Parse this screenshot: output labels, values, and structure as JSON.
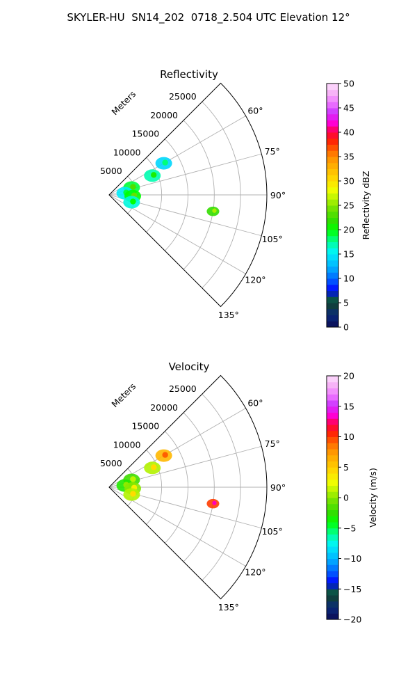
{
  "title": "SKYLER-HU  SN14_202  0718_2.504 UTC Elevation 12°",
  "chart_data": [
    {
      "type": "polar-sector-radar",
      "title": "Reflectivity",
      "range_label": "Meters",
      "range_ticks": [
        5000,
        10000,
        15000,
        20000,
        25000
      ],
      "range_tick_labels": [
        "5000",
        "10000",
        "15000",
        "20000",
        "25000"
      ],
      "r_max": 30000,
      "azimuth_range_deg": [
        45,
        135
      ],
      "azimuth_ticks": [
        60,
        75,
        90,
        105,
        120,
        135
      ],
      "azimuth_tick_labels": [
        "60°",
        "75°",
        "90°",
        "105°",
        "120°",
        "135°"
      ],
      "grid": true,
      "colorbar": {
        "label": "Reflectivity dBZ",
        "min": 0,
        "max": 50,
        "ticks": [
          0,
          5,
          10,
          15,
          20,
          25,
          30,
          35,
          40,
          45,
          50
        ],
        "tick_labels": [
          "0",
          "5",
          "10",
          "15",
          "20",
          "25",
          "30",
          "35",
          "40",
          "45",
          "50"
        ]
      },
      "echoes": [
        {
          "azimuth": 60,
          "range": 12000,
          "value": 14
        },
        {
          "azimuth": 66,
          "range": 9000,
          "value": 17
        },
        {
          "azimuth": 72,
          "range": 4500,
          "value": 19
        },
        {
          "azimuth": 84,
          "range": 3000,
          "value": 15
        },
        {
          "azimuth": 93,
          "range": 4500,
          "value": 20
        },
        {
          "azimuth": 99,
          "range": 20000,
          "value": 22
        },
        {
          "azimuth": 108,
          "range": 4500,
          "value": 16
        }
      ]
    },
    {
      "type": "polar-sector-radar",
      "title": "Velocity",
      "range_label": "Meters",
      "range_ticks": [
        5000,
        10000,
        15000,
        20000,
        25000
      ],
      "range_tick_labels": [
        "5000",
        "10000",
        "15000",
        "20000",
        "25000"
      ],
      "r_max": 30000,
      "azimuth_range_deg": [
        45,
        135
      ],
      "azimuth_ticks": [
        60,
        75,
        90,
        105,
        120,
        135
      ],
      "azimuth_tick_labels": [
        "60°",
        "75°",
        "90°",
        "105°",
        "120°",
        "135°"
      ],
      "grid": true,
      "colorbar": {
        "label": "Velocity (m/s)",
        "min": -20,
        "max": 20,
        "ticks": [
          -20,
          -15,
          -10,
          -5,
          0,
          5,
          10,
          15,
          20
        ],
        "tick_labels": [
          "−20",
          "−15",
          "−10",
          "−5",
          "0",
          "5",
          "10",
          "15",
          "20"
        ]
      },
      "echoes": [
        {
          "azimuth": 60,
          "range": 12000,
          "value": 6
        },
        {
          "azimuth": 66,
          "range": 9000,
          "value": 1
        },
        {
          "azimuth": 72,
          "range": 4500,
          "value": -2
        },
        {
          "azimuth": 84,
          "range": 3000,
          "value": -3
        },
        {
          "azimuth": 93,
          "range": 4500,
          "value": 0
        },
        {
          "azimuth": 99,
          "range": 20000,
          "value": 10
        },
        {
          "azimuth": 108,
          "range": 4500,
          "value": 1
        }
      ]
    }
  ]
}
